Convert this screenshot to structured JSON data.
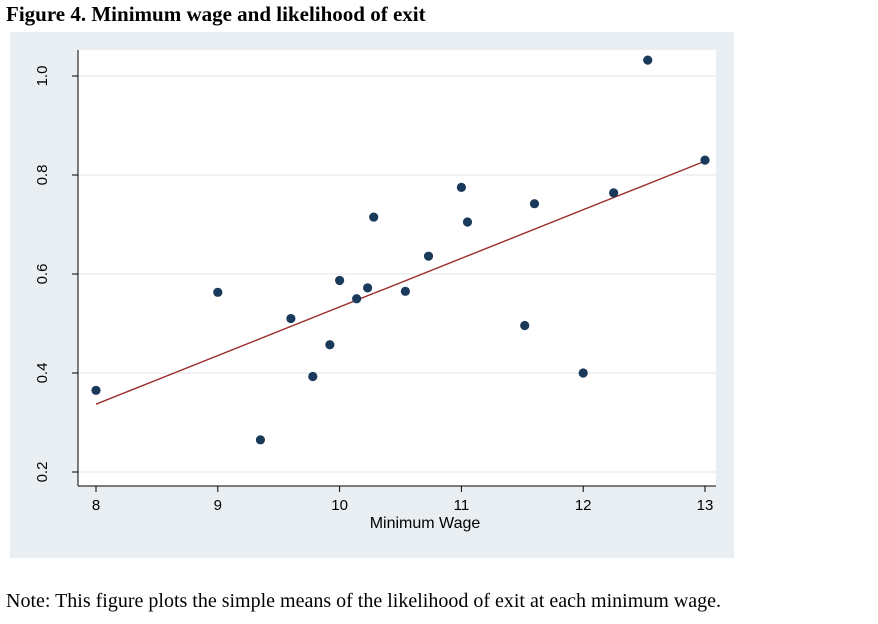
{
  "figure": {
    "title": "Figure 4. Minimum wage and likelihood of exit",
    "note": "Note: This figure plots the simple means of the likelihood of exit at each minimum wage."
  },
  "colors": {
    "panel_bg": "#e9eef2",
    "plot_bg": "#ffffff",
    "point": "#1a3a5c",
    "fit_line": "#9b2c2c"
  },
  "chart_data": {
    "type": "scatter",
    "title": "",
    "xlabel": "Minimum Wage",
    "ylabel": "",
    "xlim": [
      8,
      13
    ],
    "ylim": [
      0.2,
      1.0
    ],
    "xticks": [
      8,
      9,
      10,
      11,
      12,
      13
    ],
    "yticks": [
      0.2,
      0.4,
      0.6,
      0.8,
      1.0
    ],
    "xtick_labels": [
      "8",
      "9",
      "10",
      "11",
      "12",
      "13"
    ],
    "ytick_labels": [
      "0.2",
      "0.4",
      "0.6",
      "0.8",
      "1.0"
    ],
    "grid": "horizontal",
    "points": [
      {
        "x": 8.0,
        "y": 0.365
      },
      {
        "x": 9.0,
        "y": 0.563
      },
      {
        "x": 9.35,
        "y": 0.265
      },
      {
        "x": 9.6,
        "y": 0.51
      },
      {
        "x": 9.78,
        "y": 0.393
      },
      {
        "x": 9.92,
        "y": 0.457
      },
      {
        "x": 10.0,
        "y": 0.587
      },
      {
        "x": 10.14,
        "y": 0.55
      },
      {
        "x": 10.23,
        "y": 0.572
      },
      {
        "x": 10.28,
        "y": 0.715
      },
      {
        "x": 10.54,
        "y": 0.565
      },
      {
        "x": 10.73,
        "y": 0.636
      },
      {
        "x": 11.0,
        "y": 0.775
      },
      {
        "x": 11.05,
        "y": 0.705
      },
      {
        "x": 11.52,
        "y": 0.496
      },
      {
        "x": 11.6,
        "y": 0.742
      },
      {
        "x": 12.0,
        "y": 0.4
      },
      {
        "x": 12.25,
        "y": 0.764
      },
      {
        "x": 12.53,
        "y": 1.032
      },
      {
        "x": 13.0,
        "y": 0.83
      }
    ],
    "fit_line": {
      "x": [
        8.0,
        13.0
      ],
      "y": [
        0.337,
        0.828
      ]
    }
  }
}
